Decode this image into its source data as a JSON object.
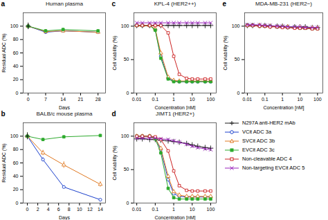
{
  "chart_data": [
    {
      "type": "line",
      "title": "Human plasma",
      "annotations": [
        "a"
      ],
      "xlabel": "Days",
      "ylabel": "Residual ADC (%)",
      "x": [
        0,
        7,
        14,
        28
      ],
      "xlim": [
        -2,
        31
      ],
      "xticks": [
        0,
        7,
        14,
        21,
        28
      ],
      "ylim": [
        0,
        120
      ],
      "yticks": [
        0,
        20,
        40,
        60,
        80,
        100
      ],
      "grid": false,
      "series": [
        {
          "name": "VCit ADC 3a",
          "color": "#1a3fcc",
          "marker": "open_circle",
          "values": [
            100,
            91,
            93,
            91
          ],
          "errors": [
            3,
            2,
            2,
            2
          ]
        },
        {
          "name": "SVCit ADC 3b",
          "color": "#e07820",
          "marker": "open_triangle",
          "values": [
            100,
            92,
            93,
            91
          ],
          "errors": [
            3,
            2,
            2,
            2
          ]
        },
        {
          "name": "EVCit ADC 3c",
          "color": "#2daa2d",
          "marker": "square",
          "values": [
            100,
            93,
            95,
            93
          ],
          "errors": [
            3,
            2,
            2,
            2
          ]
        },
        {
          "name": "N297A anti-HER2 mAb",
          "color": "#1a1a1a",
          "marker": "plus",
          "values": [
            100,
            null,
            null,
            null
          ],
          "errors": [
            5,
            null,
            null,
            null
          ]
        }
      ]
    },
    {
      "type": "line",
      "title": "BALB/c mouse plasma",
      "annotations": [
        "b"
      ],
      "xlabel": "Days",
      "ylabel": "Residual ADC (%)",
      "x": [
        0,
        3,
        7,
        14
      ],
      "xlim": [
        -0.8,
        15
      ],
      "xticks": [
        0,
        2,
        4,
        6,
        8,
        10,
        12,
        14
      ],
      "ylim": [
        0,
        120
      ],
      "yticks": [
        0,
        20,
        40,
        60,
        80,
        100
      ],
      "grid": false,
      "series": [
        {
          "name": "VCit ADC 3a",
          "color": "#1a3fcc",
          "marker": "open_circle",
          "values": [
            100,
            65,
            24,
            5
          ],
          "errors": [
            5,
            3,
            2,
            1
          ]
        },
        {
          "name": "SVCit ADC 3b",
          "color": "#e07820",
          "marker": "open_triangle",
          "values": [
            100,
            75,
            57,
            28
          ],
          "errors": [
            5,
            4,
            5,
            4
          ]
        },
        {
          "name": "EVCit ADC 3c",
          "color": "#2daa2d",
          "marker": "square",
          "values": [
            100,
            95,
            99,
            101
          ],
          "errors": [
            5,
            2,
            2,
            2
          ]
        },
        {
          "name": "N297A anti-HER2 mAb",
          "color": "#1a1a1a",
          "marker": "plus",
          "values": [
            100,
            null,
            null,
            null
          ],
          "errors": [
            5,
            null,
            null,
            null
          ]
        }
      ]
    },
    {
      "type": "line",
      "title": "KPL-4 (HER2++)",
      "annotations": [
        "c"
      ],
      "xlabel": "Concentration [nM]",
      "ylabel": "Cell viability (%)",
      "log": "x",
      "x": [
        0.01,
        0.02,
        0.05,
        0.1,
        0.2,
        0.5,
        1.0,
        2.0,
        5.0,
        10.0,
        20.0,
        50.0,
        100.0
      ],
      "xlim": [
        0.007,
        200
      ],
      "xticks": [
        0.01,
        0.1,
        1,
        10,
        100
      ],
      "ylim": [
        0,
        120
      ],
      "yticks": [
        0,
        50,
        100
      ],
      "grid": false,
      "series": [
        {
          "name": "N297A anti-HER2 mAb",
          "color": "#1a1a1a",
          "marker": "plus",
          "values": [
            101,
            101,
            101,
            101,
            101,
            101,
            101,
            101,
            101,
            101,
            101,
            101,
            101
          ]
        },
        {
          "name": "VCit ADC 3a",
          "color": "#1a3fcc",
          "marker": "open_circle",
          "values": [
            101,
            101,
            101,
            95,
            55,
            22,
            18,
            17,
            17,
            17,
            17,
            17,
            17
          ]
        },
        {
          "name": "SVCit ADC 3b",
          "color": "#e07820",
          "marker": "open_triangle",
          "values": [
            101,
            101,
            101,
            96,
            60,
            24,
            19,
            18,
            18,
            18,
            18,
            18,
            18
          ]
        },
        {
          "name": "EVCit ADC 3c",
          "color": "#2daa2d",
          "marker": "square",
          "values": [
            101,
            101,
            101,
            94,
            52,
            21,
            17,
            17,
            17,
            17,
            17,
            17,
            17
          ]
        },
        {
          "name": "Non-cleavable ADC 4",
          "color": "#cc2222",
          "marker": "open_square",
          "values": [
            101,
            101,
            101,
            101,
            101,
            90,
            55,
            28,
            22,
            21,
            21,
            21,
            21
          ]
        },
        {
          "name": "Non-targeting EVCit ADC 5",
          "color": "#9922bb",
          "marker": "x",
          "values": [
            105,
            105,
            105,
            105,
            105,
            105,
            105,
            105,
            105,
            105,
            105,
            105,
            105
          ]
        }
      ]
    },
    {
      "type": "line",
      "title": "JIMT1 (HER2+)",
      "annotations": [
        "d"
      ],
      "xlabel": "Concentration [nM]",
      "ylabel": "Cell viability (%)",
      "log": "x",
      "x": [
        0.01,
        0.02,
        0.05,
        0.1,
        0.2,
        0.5,
        1.0,
        2.0,
        5.0,
        10.0,
        20.0,
        50.0,
        100.0
      ],
      "xlim": [
        0.007,
        200
      ],
      "xticks": [
        0.01,
        0.1,
        1,
        10,
        100
      ],
      "ylim": [
        0,
        120
      ],
      "yticks": [
        0,
        50,
        100
      ],
      "grid": false,
      "series": [
        {
          "name": "N297A anti-HER2 mAb",
          "color": "#1a1a1a",
          "marker": "plus",
          "values": [
            96,
            96,
            95,
            95,
            94,
            93,
            92,
            91,
            89,
            87,
            85,
            83,
            82
          ]
        },
        {
          "name": "VCit ADC 3a",
          "color": "#1a3fcc",
          "marker": "open_circle",
          "values": [
            100,
            100,
            100,
            97,
            80,
            35,
            14,
            10,
            9,
            9,
            9,
            9,
            9
          ]
        },
        {
          "name": "SVCit ADC 3b",
          "color": "#e07820",
          "marker": "open_triangle",
          "values": [
            100,
            100,
            100,
            97,
            82,
            40,
            17,
            12,
            10,
            10,
            10,
            10,
            10
          ]
        },
        {
          "name": "EVCit ADC 3c",
          "color": "#2daa2d",
          "marker": "square",
          "values": [
            100,
            100,
            100,
            96,
            75,
            22,
            8,
            6,
            6,
            6,
            6,
            6,
            6
          ]
        },
        {
          "name": "Non-cleavable ADC 4",
          "color": "#cc2222",
          "marker": "open_square",
          "values": [
            100,
            100,
            100,
            99,
            95,
            78,
            48,
            26,
            19,
            18,
            18,
            18,
            18
          ]
        },
        {
          "name": "Non-targeting EVCit ADC 5",
          "color": "#9922bb",
          "marker": "x",
          "values": [
            97,
            97,
            97,
            97,
            96,
            95,
            93,
            91,
            88,
            85,
            83,
            81,
            80
          ]
        }
      ]
    },
    {
      "type": "line",
      "title": "MDA-MB-231 (HER2−)",
      "annotations": [
        "e"
      ],
      "xlabel": "Concentration [nM]",
      "ylabel": "Cell viability (%)",
      "log": "x",
      "x": [
        0.01,
        0.02,
        0.05,
        0.1,
        0.2,
        0.5,
        1.0,
        2.0,
        5.0,
        10.0,
        20.0,
        50.0,
        100.0
      ],
      "xlim": [
        0.007,
        200
      ],
      "xticks": [
        0.01,
        0.1,
        1,
        10,
        100
      ],
      "ylim": [
        0,
        120
      ],
      "yticks": [
        0,
        50,
        100
      ],
      "grid": false,
      "legend": "below",
      "series": [
        {
          "name": "N297A anti-HER2 mAb",
          "color": "#1a1a1a",
          "marker": "plus",
          "values": [
            101,
            101,
            101,
            101,
            100,
            100,
            100,
            99,
            99,
            99,
            99,
            98,
            98
          ]
        },
        {
          "name": "VCit ADC 3a",
          "color": "#1a3fcc",
          "marker": "open_circle",
          "values": [
            102,
            102,
            101,
            101,
            100,
            100,
            99,
            99,
            99,
            98,
            98,
            97,
            97
          ]
        },
        {
          "name": "SVCit ADC 3b",
          "color": "#e07820",
          "marker": "open_triangle",
          "values": [
            101,
            101,
            101,
            100,
            100,
            99,
            99,
            99,
            98,
            98,
            97,
            97,
            97
          ]
        },
        {
          "name": "EVCit ADC 3c",
          "color": "#2daa2d",
          "marker": "square",
          "values": [
            101,
            101,
            100,
            100,
            100,
            99,
            99,
            98,
            98,
            97,
            97,
            96,
            96
          ]
        },
        {
          "name": "Non-cleavable ADC 4",
          "color": "#cc2222",
          "marker": "open_square",
          "values": [
            101,
            101,
            100,
            100,
            99,
            99,
            98,
            98,
            97,
            97,
            97,
            96,
            96
          ]
        },
        {
          "name": "Non-targeting EVCit ADC 5",
          "color": "#9922bb",
          "marker": "x",
          "values": [
            102,
            102,
            102,
            101,
            101,
            100,
            100,
            99,
            99,
            99,
            98,
            98,
            98
          ]
        }
      ]
    }
  ]
}
